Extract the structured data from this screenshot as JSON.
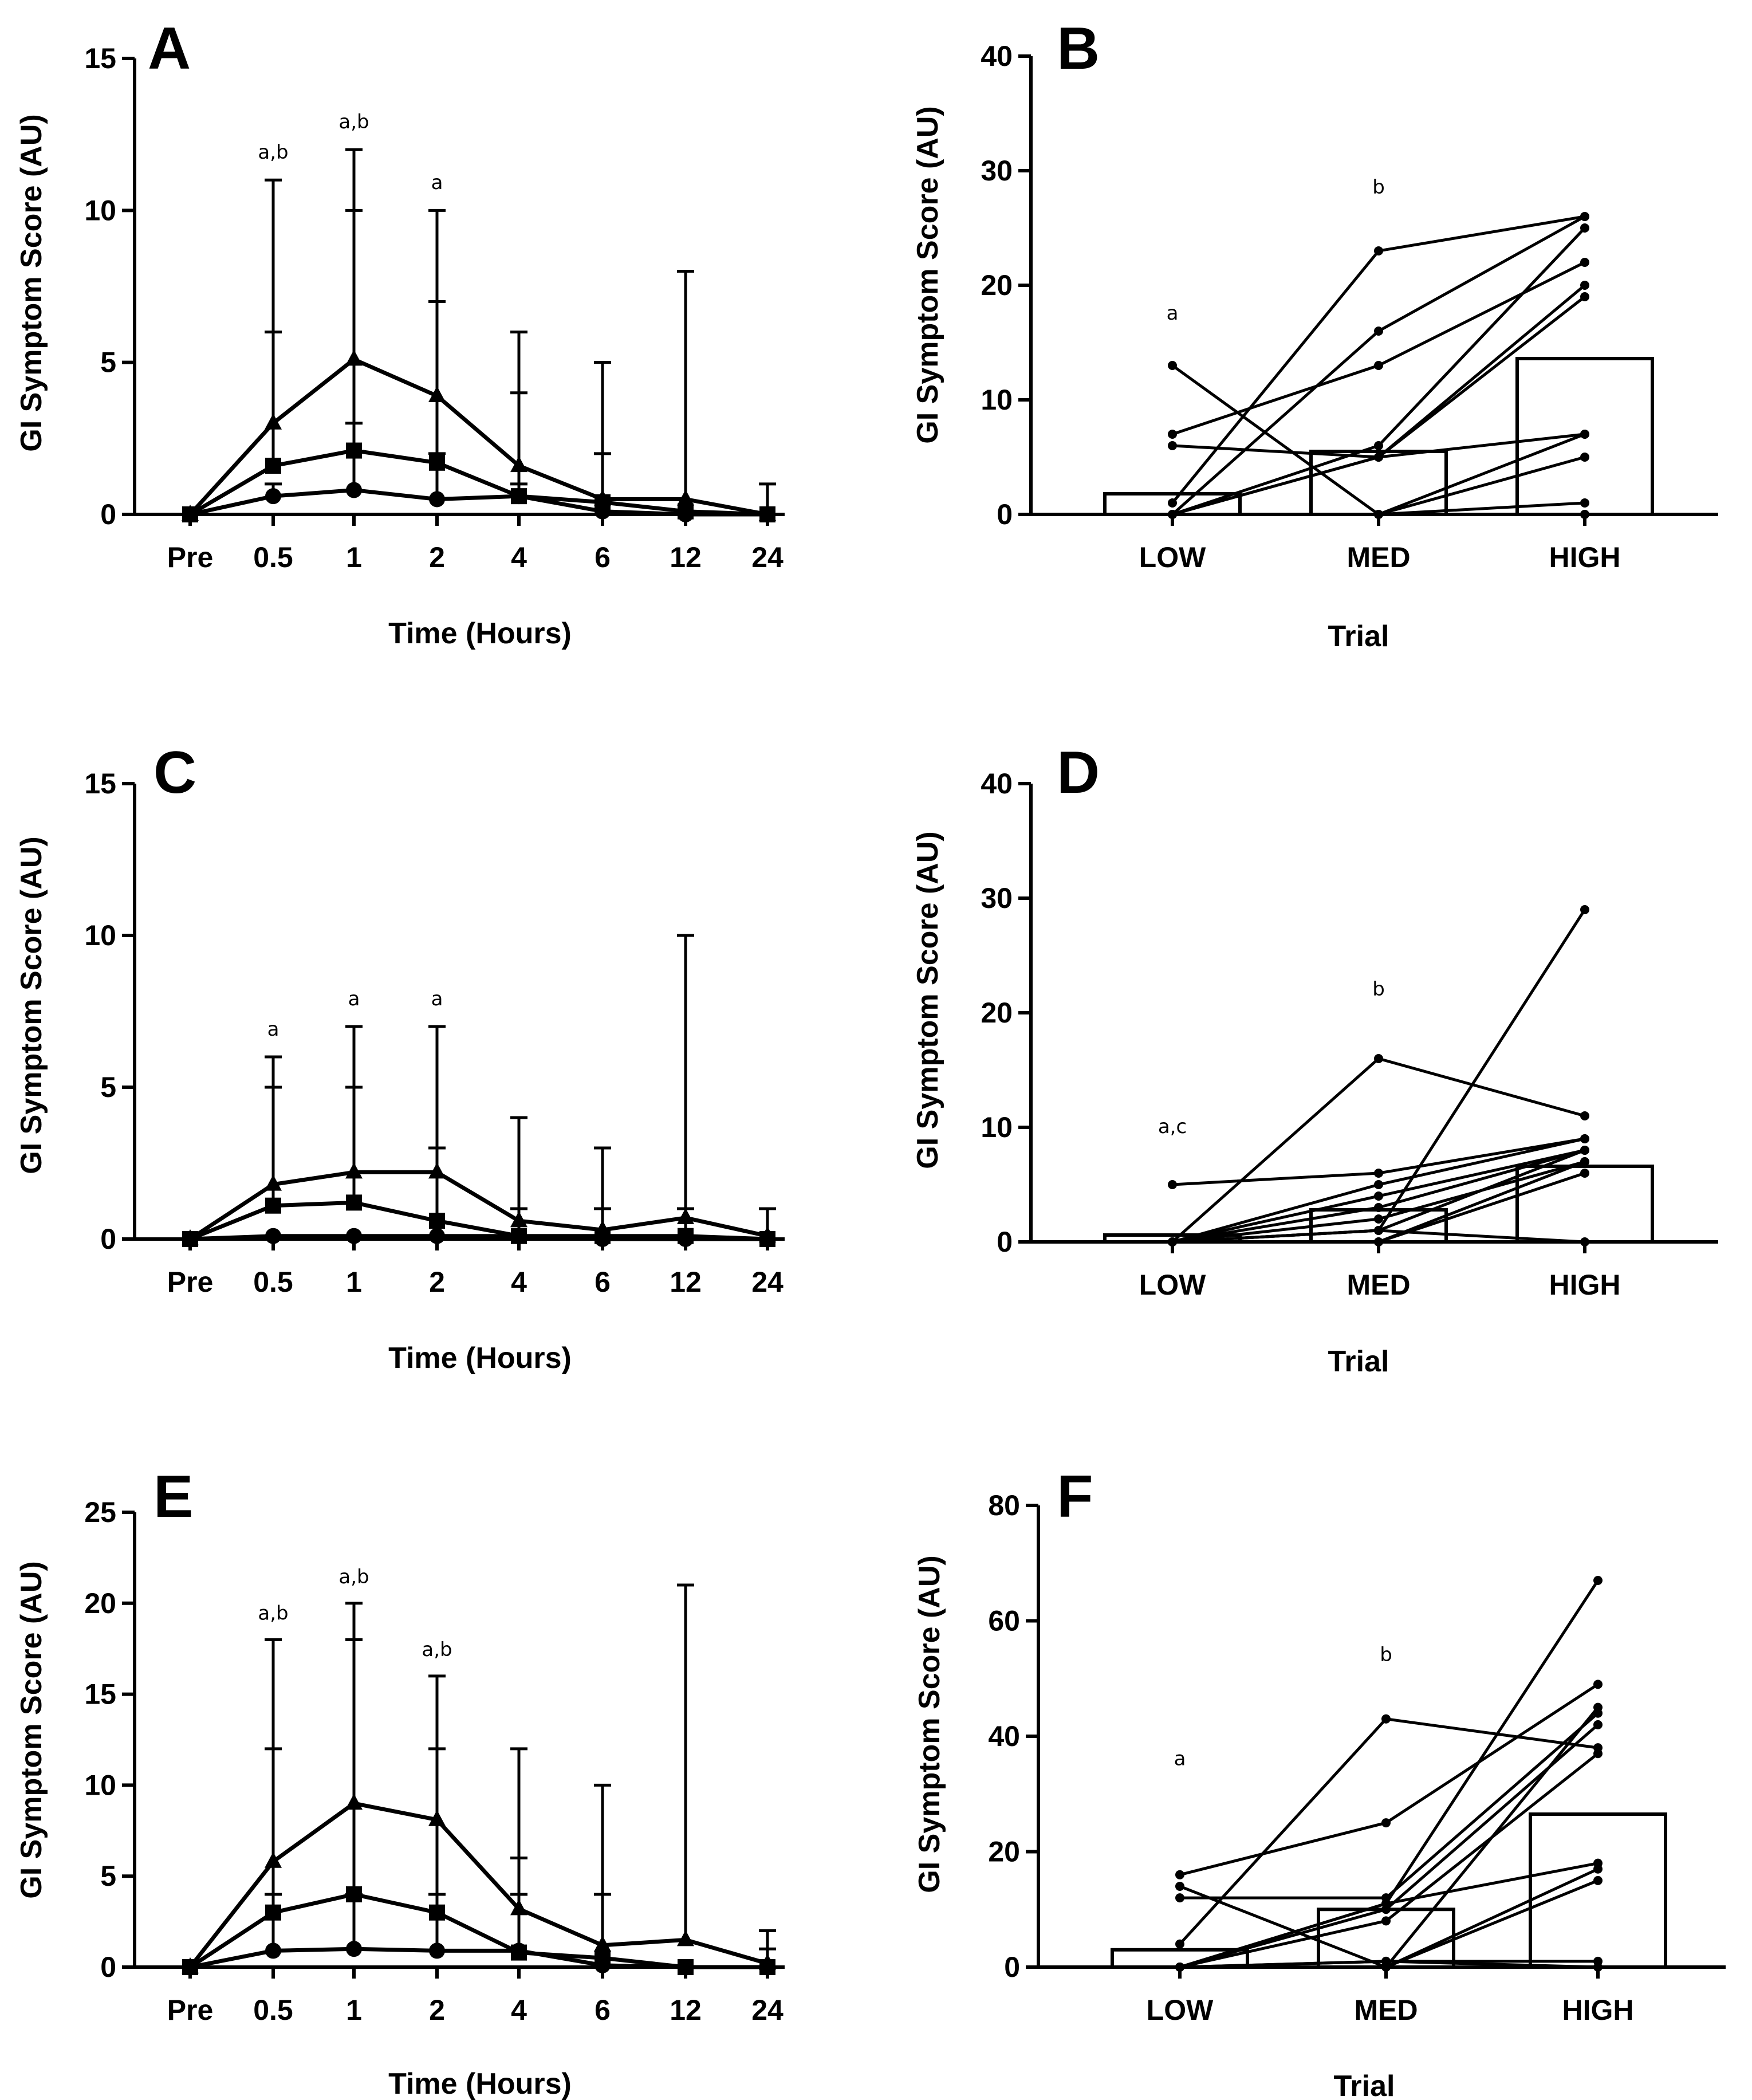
{
  "chart_data": [
    {
      "panel": "A",
      "type": "line",
      "xlabel": "Time (Hours)",
      "ylabel": "GI Symptom Score (AU)",
      "ylim": [
        0,
        15
      ],
      "yticks": [
        0,
        5,
        10,
        15
      ],
      "categories": [
        "Pre",
        "0.5",
        "1",
        "2",
        "4",
        "6",
        "12",
        "24"
      ],
      "series": [
        {
          "name": "triangle",
          "marker": "triangle",
          "values": [
            0,
            3.0,
            5.1,
            3.9,
            1.6,
            0.5,
            0.5,
            0
          ],
          "err_upper": [
            0,
            11,
            12,
            10,
            6,
            5,
            8,
            1
          ]
        },
        {
          "name": "square",
          "marker": "square",
          "values": [
            0,
            1.6,
            2.1,
            1.7,
            0.6,
            0.4,
            0.1,
            0
          ],
          "err_upper": [
            0,
            6,
            10,
            7,
            4,
            2,
            0,
            0
          ]
        },
        {
          "name": "circle",
          "marker": "circle",
          "values": [
            0,
            0.6,
            0.8,
            0.5,
            0.6,
            0.1,
            0,
            0
          ],
          "err_upper": [
            0,
            1,
            3,
            2,
            1,
            0,
            0,
            0
          ]
        }
      ],
      "annotations": [
        {
          "category": "0.5",
          "text": "a,b",
          "y": 11.7
        },
        {
          "category": "1",
          "text": "a,b",
          "y": 12.7
        },
        {
          "category": "2",
          "text": "a",
          "y": 10.7
        }
      ]
    },
    {
      "panel": "B",
      "type": "bar",
      "xlabel": "Trial",
      "ylabel": "GI Symptom Score (AU)",
      "ylim": [
        0,
        40
      ],
      "yticks": [
        0,
        10,
        20,
        30,
        40
      ],
      "categories": [
        "LOW",
        "MED",
        "HIGH"
      ],
      "values": [
        1.8,
        5.5,
        13.6
      ],
      "individuals": [
        [
          13,
          0,
          7
        ],
        [
          7,
          13,
          22
        ],
        [
          6,
          5,
          19
        ],
        [
          1,
          23,
          26
        ],
        [
          0,
          16,
          26
        ],
        [
          0,
          6,
          25
        ],
        [
          0,
          5,
          20
        ],
        [
          0,
          5,
          7
        ],
        [
          0,
          0,
          5
        ],
        [
          0,
          0,
          1
        ],
        [
          0,
          0,
          0
        ],
        [
          0,
          0,
          0
        ]
      ],
      "annotations": [
        {
          "category": "LOW",
          "text": "a",
          "y": 17
        },
        {
          "category": "MED",
          "text": "b",
          "y": 28
        }
      ]
    },
    {
      "panel": "C",
      "type": "line",
      "xlabel": "Time (Hours)",
      "ylabel": "GI Symptom Score (AU)",
      "ylim": [
        0,
        15
      ],
      "yticks": [
        0,
        5,
        10,
        15
      ],
      "categories": [
        "Pre",
        "0.5",
        "1",
        "2",
        "4",
        "6",
        "12",
        "24"
      ],
      "series": [
        {
          "name": "triangle",
          "marker": "triangle",
          "values": [
            0,
            1.8,
            2.2,
            2.2,
            0.6,
            0.3,
            0.7,
            0.1
          ],
          "err_upper": [
            0,
            6,
            7,
            7,
            4,
            3,
            10,
            1
          ]
        },
        {
          "name": "square",
          "marker": "square",
          "values": [
            0,
            1.1,
            1.2,
            0.6,
            0.1,
            0.1,
            0.1,
            0
          ],
          "err_upper": [
            0,
            5,
            5,
            3,
            1,
            1,
            1,
            0
          ]
        },
        {
          "name": "circle",
          "marker": "circle",
          "values": [
            0,
            0.1,
            0.1,
            0.1,
            0.1,
            0,
            0,
            0
          ],
          "err_upper": [
            0,
            0,
            0,
            0,
            0,
            0,
            0,
            0
          ]
        }
      ],
      "annotations": [
        {
          "category": "0.5",
          "text": "a",
          "y": 6.7
        },
        {
          "category": "1",
          "text": "a",
          "y": 7.7
        },
        {
          "category": "2",
          "text": "a",
          "y": 7.7
        }
      ]
    },
    {
      "panel": "D",
      "type": "bar",
      "xlabel": "Trial",
      "ylabel": "GI Symptom Score (AU)",
      "ylim": [
        0,
        40
      ],
      "yticks": [
        0,
        10,
        20,
        30,
        40
      ],
      "categories": [
        "LOW",
        "MED",
        "HIGH"
      ],
      "values": [
        0.6,
        2.8,
        6.6
      ],
      "individuals": [
        [
          5,
          6,
          9
        ],
        [
          0,
          16,
          11
        ],
        [
          0,
          1,
          29
        ],
        [
          0,
          5,
          9
        ],
        [
          0,
          4,
          8
        ],
        [
          0,
          3,
          8
        ],
        [
          0,
          2,
          7
        ],
        [
          0,
          1,
          8
        ],
        [
          0,
          0,
          7
        ],
        [
          0,
          0,
          6
        ],
        [
          0,
          1,
          0
        ]
      ],
      "annotations": [
        {
          "category": "LOW",
          "text": "a,c",
          "y": 9.5
        },
        {
          "category": "MED",
          "text": "b",
          "y": 21.5
        }
      ]
    },
    {
      "panel": "E",
      "type": "line",
      "xlabel": "Time (Hours)",
      "ylabel": "GI Symptom Score (AU)",
      "ylim": [
        0,
        25
      ],
      "yticks": [
        0,
        5,
        10,
        15,
        20,
        25
      ],
      "categories": [
        "Pre",
        "0.5",
        "1",
        "2",
        "4",
        "6",
        "12",
        "24"
      ],
      "series": [
        {
          "name": "triangle",
          "marker": "triangle",
          "values": [
            0,
            5.8,
            9.0,
            8.1,
            3.2,
            1.2,
            1.5,
            0.2
          ],
          "err_upper": [
            0,
            18,
            20,
            16,
            12,
            10,
            21,
            2
          ]
        },
        {
          "name": "square",
          "marker": "square",
          "values": [
            0,
            3.0,
            4.0,
            3.0,
            0.8,
            0.5,
            0,
            0
          ],
          "err_upper": [
            0,
            12,
            18,
            12,
            6,
            4,
            0,
            1
          ]
        },
        {
          "name": "circle",
          "marker": "circle",
          "values": [
            0,
            0.9,
            1.0,
            0.9,
            0.9,
            0.1,
            0,
            0
          ],
          "err_upper": [
            0,
            4,
            4,
            4,
            4,
            0,
            0,
            0
          ]
        }
      ],
      "annotations": [
        {
          "category": "0.5",
          "text": "a,b",
          "y": 19.1
        },
        {
          "category": "1",
          "text": "a,b",
          "y": 21.1
        },
        {
          "category": "2",
          "text": "a,b",
          "y": 17.1
        }
      ]
    },
    {
      "panel": "F",
      "type": "bar",
      "xlabel": "Trial",
      "ylabel": "GI Symptom Score (AU)",
      "ylim": [
        0,
        80
      ],
      "yticks": [
        0,
        20,
        40,
        60,
        80
      ],
      "categories": [
        "LOW",
        "MED",
        "HIGH"
      ],
      "values": [
        3,
        10,
        26.5
      ],
      "individuals": [
        [
          16,
          25,
          49
        ],
        [
          14,
          0,
          45
        ],
        [
          12,
          12,
          44
        ],
        [
          4,
          43,
          38
        ],
        [
          0,
          11,
          67
        ],
        [
          0,
          10,
          42
        ],
        [
          0,
          8,
          37
        ],
        [
          0,
          11,
          18
        ],
        [
          0,
          0,
          17
        ],
        [
          0,
          0,
          15
        ],
        [
          0,
          1,
          1
        ],
        [
          0,
          1,
          0
        ]
      ],
      "annotations": [
        {
          "category": "LOW",
          "text": "a",
          "y": 35
        },
        {
          "category": "MED",
          "text": "b",
          "y": 53
        }
      ]
    }
  ]
}
